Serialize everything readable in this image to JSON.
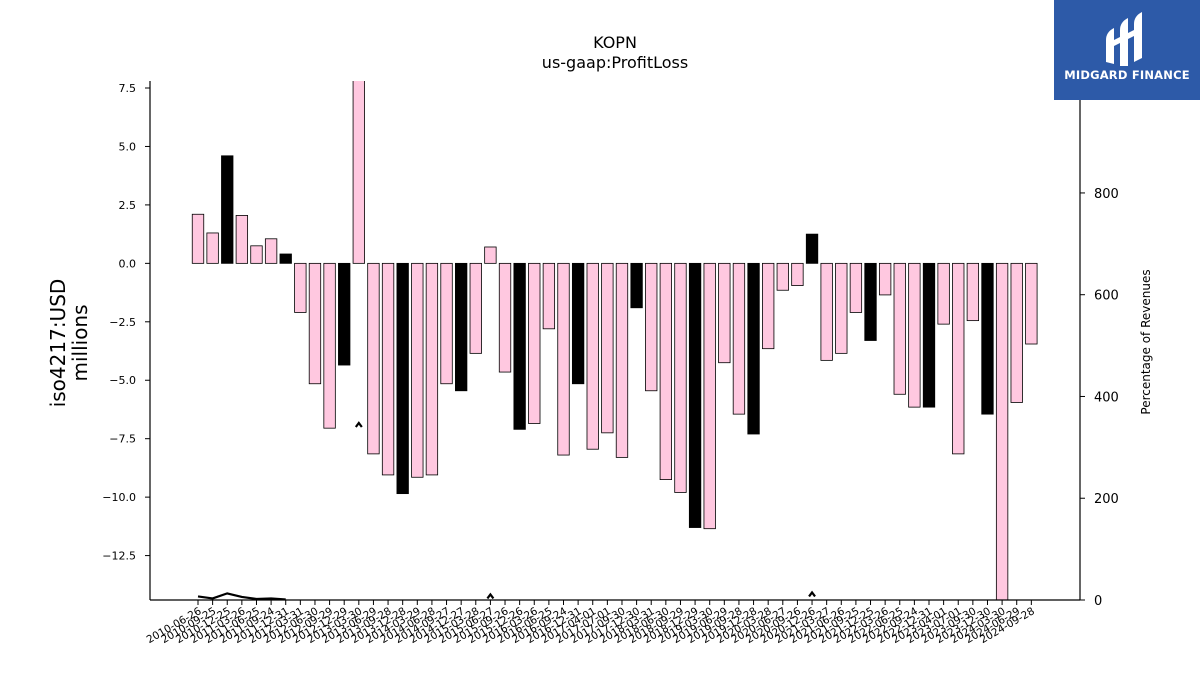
{
  "logo": {
    "text": "MIDGARD FINANCE"
  },
  "chart_data": {
    "type": "bar",
    "title": "KOPN",
    "subtitle": "us-gaap:ProfitLoss",
    "ylabel": "iso4217:USD\nmillions",
    "ylabel_right": "Percentage of Revenues",
    "ylim": [
      -14.4,
      7.8
    ],
    "ylim_right": [
      0,
      1020
    ],
    "yticks": [
      7.5,
      5.0,
      2.5,
      0.0,
      -2.5,
      -5.0,
      -7.5,
      -10.0,
      -12.5
    ],
    "ytick_labels": [
      "7.5",
      "5.0",
      "2.5",
      "0.0",
      "−2.5",
      "−5.0",
      "−7.5",
      "−10.0",
      "−12.5"
    ],
    "yticks_right": [
      0,
      200,
      400,
      600,
      800
    ],
    "ytick_right_labels": [
      "0",
      "200",
      "400",
      "600",
      "800"
    ],
    "colors": {
      "quarter": "#ffc8e0",
      "annual": "#000000",
      "edge": "#000000"
    },
    "categories": [
      "2010-06-26",
      "2010-09-25",
      "2010-12-25",
      "2011-03-26",
      "2011-06-25",
      "2011-09-24",
      "2011-12-31",
      "2012-03-31",
      "2012-06-30",
      "2012-09-29",
      "2012-12-29",
      "2013-03-30",
      "2013-06-29",
      "2013-09-28",
      "2013-12-28",
      "2014-03-29",
      "2014-06-28",
      "2014-09-27",
      "2014-12-27",
      "2015-03-28",
      "2015-06-27",
      "2015-09-26",
      "2015-12-26",
      "2016-03-26",
      "2016-06-25",
      "2016-09-24",
      "2016-12-31",
      "2017-04-01",
      "2017-07-01",
      "2017-09-30",
      "2017-12-30",
      "2018-03-31",
      "2018-06-30",
      "2018-09-29",
      "2018-12-29",
      "2019-03-30",
      "2019-06-29",
      "2019-09-28",
      "2019-12-28",
      "2020-03-28",
      "2020-06-27",
      "2020-09-26",
      "2020-12-26",
      "2021-03-27",
      "2021-06-26",
      "2021-09-25",
      "2021-12-25",
      "2022-03-26",
      "2022-06-25",
      "2022-09-24",
      "2022-12-31",
      "2023-04-01",
      "2023-07-01",
      "2023-09-30",
      "2023-12-30",
      "2024-03-30",
      "2024-06-29",
      "2024-09-28"
    ],
    "series": [
      {
        "type": "bar",
        "values": [
          2.1,
          1.3,
          4.6,
          2.05,
          0.75,
          1.05,
          0.4,
          -2.1,
          -5.15,
          -7.05,
          -4.35,
          9.2,
          -8.15,
          -9.05,
          -9.85,
          -9.15,
          -9.05,
          -5.15,
          -5.45,
          -3.85,
          0.7,
          -4.65,
          -7.1,
          -6.85,
          -2.8,
          -8.2,
          -5.15,
          -7.95,
          -7.25,
          -8.3,
          -1.9,
          -5.45,
          -9.25,
          -9.8,
          -11.3,
          -11.35,
          -4.25,
          -6.45,
          -7.3,
          -3.65,
          -1.15,
          -0.95,
          1.25,
          -4.15,
          -3.85,
          -2.1,
          -3.3,
          -1.35,
          -5.6,
          -6.15,
          -6.15,
          -2.6,
          -8.15,
          -2.45,
          -6.45,
          -14.5,
          -5.95,
          -3.45
        ],
        "annual": [
          false,
          false,
          true,
          false,
          false,
          false,
          true,
          false,
          false,
          false,
          true,
          false,
          false,
          false,
          true,
          false,
          false,
          false,
          true,
          false,
          false,
          false,
          true,
          false,
          false,
          false,
          true,
          false,
          false,
          false,
          true,
          false,
          false,
          false,
          true,
          false,
          false,
          false,
          true,
          false,
          false,
          false,
          true,
          false,
          false,
          false,
          true,
          false,
          false,
          false,
          true,
          false,
          false,
          false,
          true,
          false,
          false,
          false
        ]
      },
      {
        "type": "line",
        "axis": "right",
        "points": [
          [
            0,
            7
          ],
          [
            1,
            3
          ],
          [
            2,
            13
          ],
          [
            3,
            6
          ],
          [
            4,
            2
          ],
          [
            5,
            3
          ],
          [
            6,
            1
          ],
          [
            11,
            340
          ],
          [
            20,
            3
          ],
          [
            42,
            7
          ]
        ]
      }
    ]
  }
}
